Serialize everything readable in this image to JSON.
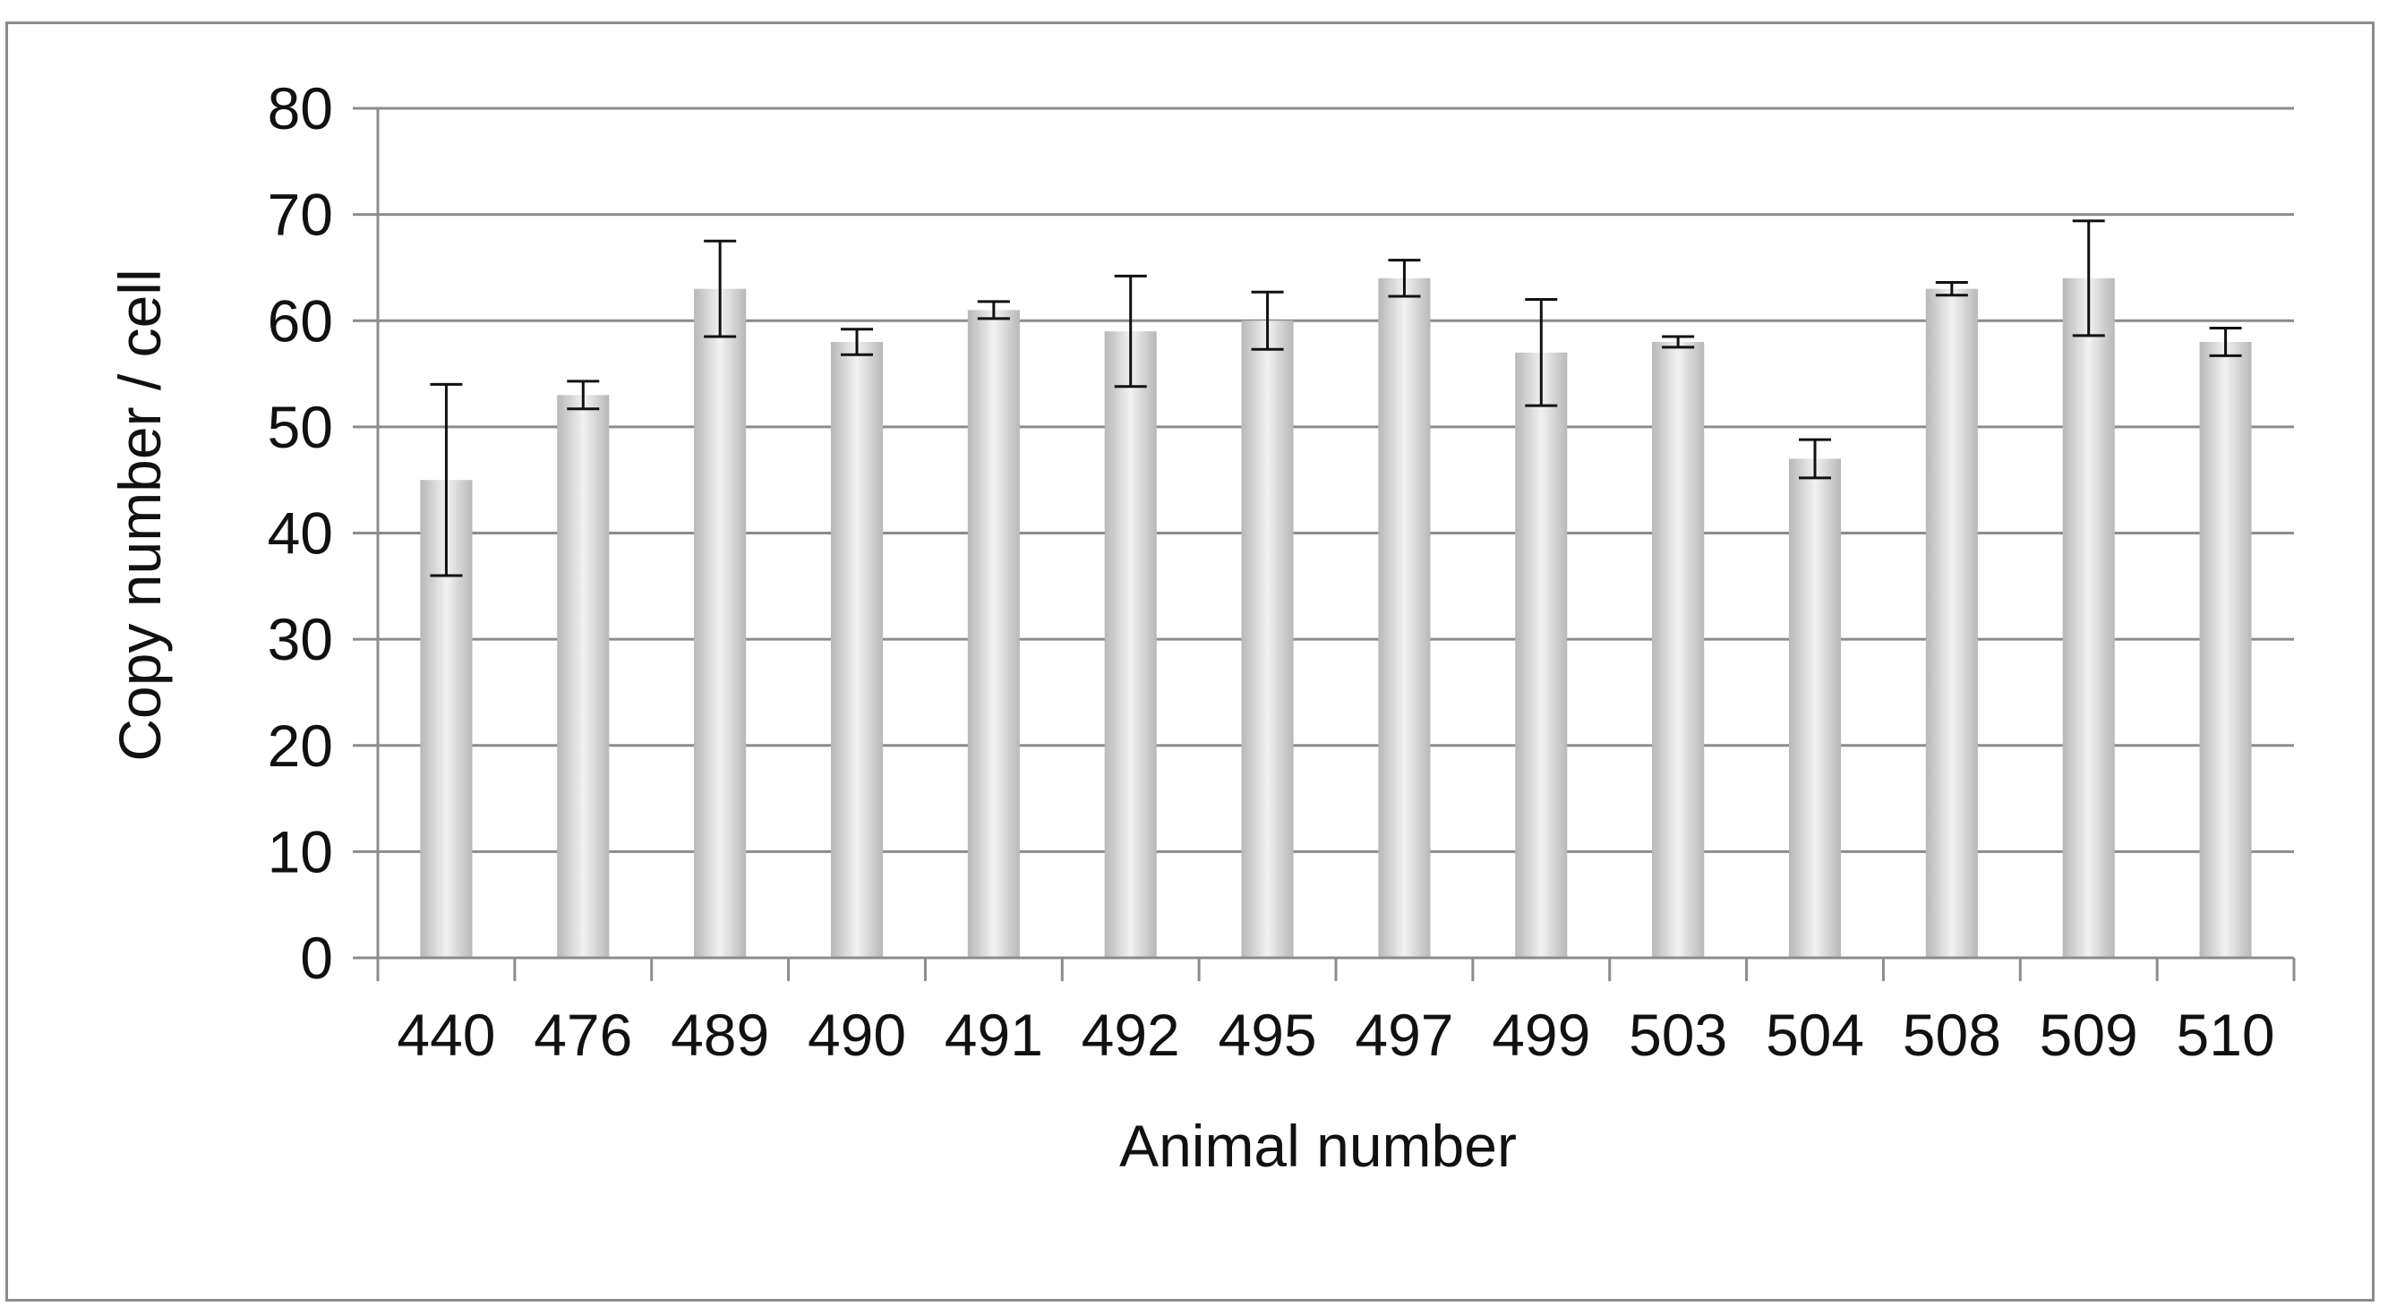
{
  "chart_data": {
    "type": "bar",
    "title": "",
    "xlabel": "Animal number",
    "ylabel": "Copy number / cell",
    "ylim": [
      0,
      80
    ],
    "yticks": [
      0,
      10,
      20,
      30,
      40,
      50,
      60,
      70,
      80
    ],
    "grid": true,
    "categories": [
      "440",
      "476",
      "489",
      "490",
      "491",
      "492",
      "495",
      "497",
      "499",
      "503",
      "504",
      "508",
      "509",
      "510"
    ],
    "series": [
      {
        "values": [
          45,
          53,
          63,
          58,
          61,
          59,
          60,
          64,
          57,
          58,
          47,
          63,
          64,
          58
        ],
        "error": [
          9,
          1.3,
          4.5,
          1.2,
          0.8,
          5.2,
          2.7,
          1.7,
          5,
          0.5,
          1.8,
          0.6,
          5.4,
          1.3
        ]
      }
    ],
    "colors": {
      "bar_center": "#f2f2f2",
      "bar_edge": "#b8b8b8",
      "grid": "#8c8c8c",
      "error_bar": "#111111"
    }
  }
}
